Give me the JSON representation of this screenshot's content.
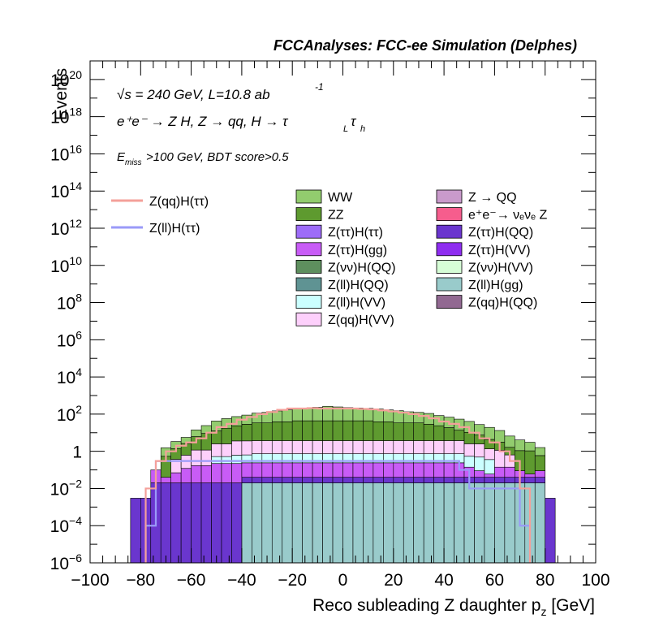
{
  "chart_data": {
    "type": "bar",
    "subtype": "stacked-histogram",
    "header": "FCCAnalyses: FCC-ee Simulation (Delphes)",
    "annotations": {
      "energy": "√s = 240 GeV, L=10.8 ab",
      "energy_sup": "-1",
      "process": "e⁺e⁻ → Z H, Z → qq, H → τ",
      "process_sub_L": "L",
      "process_tau": "τ",
      "process_sub_h": "h",
      "cuts_E": "E",
      "cuts_sub": "miss",
      "cuts_rest": ">100 GeV, BDT score>0.5"
    },
    "xlabel": "Reco subleading Z daughter p",
    "xlabel_sub": "z",
    "xlabel_unit": " [GeV]",
    "ylabel": "Events",
    "xlim": [
      -100,
      100
    ],
    "ylim": [
      1e-06,
      1e+21
    ],
    "yscale": "log",
    "x_ticks": [
      -100,
      -80,
      -60,
      -40,
      -20,
      0,
      20,
      40,
      60,
      80,
      100
    ],
    "x_tick_labels": [
      "−100",
      "−80",
      "−60",
      "−40",
      "−20",
      "0",
      "20",
      "40",
      "60",
      "80",
      "100"
    ],
    "y_ticks": [
      {
        "exp": -6,
        "base": "10",
        "sup": "−6"
      },
      {
        "exp": -4,
        "base": "10",
        "sup": "−4"
      },
      {
        "exp": -2,
        "base": "10",
        "sup": "−2"
      },
      {
        "exp": 0,
        "base": "1",
        "sup": ""
      },
      {
        "exp": 2,
        "base": "10",
        "sup": "2"
      },
      {
        "exp": 4,
        "base": "10",
        "sup": "4"
      },
      {
        "exp": 6,
        "base": "10",
        "sup": "6"
      },
      {
        "exp": 8,
        "base": "10",
        "sup": "8"
      },
      {
        "exp": 10,
        "base": "10",
        "sup": "10"
      },
      {
        "exp": 12,
        "base": "10",
        "sup": "12"
      },
      {
        "exp": 14,
        "base": "10",
        "sup": "14"
      },
      {
        "exp": 16,
        "base": "10",
        "sup": "16"
      },
      {
        "exp": 18,
        "base": "10",
        "sup": "18"
      },
      {
        "exp": 20,
        "base": "10",
        "sup": "20"
      }
    ],
    "bin_edges": [
      -100,
      100
    ],
    "bin_width": 4,
    "legend_signal": [
      {
        "name": "Z(qq)H(ττ)",
        "color": "#f4a09a"
      },
      {
        "name": "Z(ll)H(ττ)",
        "color": "#9a9af8"
      }
    ],
    "legend_bkg_col1": [
      {
        "name": "WW",
        "color": "#92cc6e"
      },
      {
        "name": "ZZ",
        "color": "#5e9a2f"
      },
      {
        "name": "Z(ττ)H(ττ)",
        "color": "#9d6cf8"
      },
      {
        "name": "Z(ττ)H(gg)",
        "color": "#c85cf6"
      },
      {
        "name": "Z(νν)H(QQ)",
        "color": "#5e8f5e"
      },
      {
        "name": "Z(ll)H(QQ)",
        "color": "#5f9393"
      },
      {
        "name": "Z(ll)H(VV)",
        "color": "#cbffff"
      },
      {
        "name": "Z(qq)H(VV)",
        "color": "#fdd0fb"
      }
    ],
    "legend_bkg_col2": [
      {
        "name": "Z → QQ",
        "color": "#c99acb"
      },
      {
        "name": "e⁺e⁻→ νₑνₑ Z",
        "color": "#f65d8d"
      },
      {
        "name": "Z(ττ)H(QQ)",
        "color": "#6a36ce"
      },
      {
        "name": "Z(ττ)H(VV)",
        "color": "#8e2df0"
      },
      {
        "name": "Z(νν)H(VV)",
        "color": "#d6fdd6"
      },
      {
        "name": "Z(ll)H(gg)",
        "color": "#99cbcb"
      },
      {
        "name": "Z(qq)H(QQ)",
        "color": "#926992"
      }
    ],
    "series": [
      {
        "name": "Z(ll)H(gg)",
        "color": "#99cbcb",
        "edge_lo": 3,
        "edge_hi": 43,
        "values": [
          0,
          0,
          0,
          0,
          0,
          0,
          0,
          0,
          0,
          0,
          0,
          0,
          0,
          0,
          0,
          0.02,
          0.02,
          0.02,
          0.02,
          0.02,
          0.02,
          0.02,
          0.02,
          0.02,
          0.02,
          0.02,
          0.02,
          0.02,
          0.02,
          0.02,
          0.02,
          0.02,
          0.02,
          0.02,
          0.02,
          0.02,
          0.02,
          0.02,
          0.02,
          0.02,
          0.02,
          0.02,
          0.02,
          0.02,
          0.02,
          0,
          0,
          0,
          0,
          0
        ]
      },
      {
        "name": "Z(ττ)H(QQ)",
        "color": "#6a36ce",
        "edge_lo": 4,
        "edge_hi": 44,
        "values": [
          0,
          0,
          0,
          0,
          0.003,
          0.003,
          0.02,
          0.02,
          0.02,
          0.02,
          0.02,
          0.02,
          0.02,
          0.02,
          0.02,
          0.02,
          0.02,
          0.02,
          0.02,
          0.02,
          0.02,
          0.02,
          0.02,
          0.02,
          0.02,
          0.02,
          0.02,
          0.02,
          0.02,
          0.02,
          0.02,
          0.02,
          0.02,
          0.02,
          0.02,
          0.02,
          0.02,
          0.02,
          0.02,
          0.02,
          0.02,
          0.02,
          0.02,
          0.02,
          0.02,
          0.003,
          0,
          0,
          0,
          0
        ]
      },
      {
        "name": "Z(ττ)H(gg)",
        "color": "#c85cf6",
        "edge_lo": 6,
        "edge_hi": 44,
        "values": [
          0,
          0,
          0,
          0,
          0,
          0,
          0.08,
          0.02,
          0.05,
          0.1,
          0.15,
          0.15,
          0.2,
          0.2,
          0.2,
          0.2,
          0.2,
          0.2,
          0.2,
          0.2,
          0.2,
          0.2,
          0.2,
          0.2,
          0.2,
          0.2,
          0.2,
          0.2,
          0.2,
          0.2,
          0.2,
          0.2,
          0.2,
          0.2,
          0.2,
          0.2,
          0.2,
          0.1,
          0.05,
          0.02,
          0.1,
          0.1,
          0.05,
          0.02,
          0.05,
          0,
          0,
          0,
          0,
          0
        ]
      },
      {
        "name": "Z(ll)H(VV)",
        "color": "#cbffff",
        "edge_lo": 12,
        "edge_hi": 40,
        "values": [
          0,
          0,
          0,
          0,
          0,
          0,
          0,
          0,
          0,
          0,
          0,
          0,
          0.3,
          0.3,
          0.4,
          0.4,
          0.5,
          0.5,
          0.5,
          0.5,
          0.5,
          0.5,
          0.5,
          0.5,
          0.5,
          0.5,
          0.5,
          0.5,
          0.5,
          0.5,
          0.5,
          0.5,
          0.5,
          0.5,
          0.5,
          0.5,
          0.5,
          0.4,
          0.4,
          0.3,
          0,
          0,
          0,
          0,
          0,
          0,
          0,
          0,
          0,
          0
        ]
      },
      {
        "name": "Z(qq)H(VV)",
        "color": "#fdd0fb",
        "edge_lo": 8,
        "edge_hi": 42,
        "values": [
          0,
          0,
          0,
          0,
          0,
          0,
          0,
          0,
          0.3,
          0.5,
          1,
          1,
          2,
          2,
          3,
          3,
          3,
          3,
          3,
          3,
          3,
          3,
          3,
          3,
          3,
          3,
          3,
          3,
          3,
          3,
          3,
          3,
          3,
          3,
          3,
          3,
          3,
          2,
          2,
          1,
          1,
          0.5,
          0,
          0,
          0,
          0,
          0,
          0,
          0,
          0
        ]
      },
      {
        "name": "ZZ",
        "color": "#5e9a2f",
        "edge_lo": 7,
        "edge_hi": 45,
        "values": [
          0,
          0,
          0,
          0,
          0,
          0,
          0,
          0.5,
          1,
          2,
          5,
          8,
          10,
          15,
          20,
          25,
          30,
          30,
          35,
          35,
          40,
          40,
          40,
          40,
          40,
          40,
          40,
          40,
          35,
          35,
          30,
          30,
          30,
          25,
          20,
          15,
          10,
          8,
          5,
          3,
          2,
          1,
          1,
          1,
          0.5,
          0,
          0,
          0,
          0,
          0
        ]
      },
      {
        "name": "WW",
        "color": "#92cc6e",
        "edge_lo": 7,
        "edge_hi": 45,
        "values": [
          0,
          0,
          0,
          0,
          0,
          0,
          0,
          1,
          2,
          3,
          8,
          15,
          30,
          40,
          50,
          60,
          80,
          90,
          110,
          130,
          150,
          170,
          190,
          220,
          200,
          180,
          170,
          160,
          150,
          130,
          120,
          100,
          90,
          80,
          60,
          50,
          40,
          30,
          20,
          15,
          10,
          5,
          3,
          2,
          1,
          0,
          0,
          0,
          0,
          0
        ]
      }
    ],
    "signal_qq_tautau": [
      {
        "x": -76,
        "y": 0.01
      },
      {
        "x": -72,
        "y": 0.3
      },
      {
        "x": -68,
        "y": 1
      },
      {
        "x": -64,
        "y": 2
      },
      {
        "x": -60,
        "y": 3
      },
      {
        "x": -56,
        "y": 5
      },
      {
        "x": -52,
        "y": 10
      },
      {
        "x": -48,
        "y": 20
      },
      {
        "x": -44,
        "y": 30
      },
      {
        "x": -40,
        "y": 50
      },
      {
        "x": -36,
        "y": 70
      },
      {
        "x": -32,
        "y": 100
      },
      {
        "x": -28,
        "y": 130
      },
      {
        "x": -24,
        "y": 170
      },
      {
        "x": -20,
        "y": 200
      },
      {
        "x": -16,
        "y": 200
      },
      {
        "x": -12,
        "y": 210
      },
      {
        "x": -8,
        "y": 200
      },
      {
        "x": -4,
        "y": 200
      },
      {
        "x": 0,
        "y": 200
      },
      {
        "x": 4,
        "y": 200
      },
      {
        "x": 8,
        "y": 190
      },
      {
        "x": 12,
        "y": 180
      },
      {
        "x": 16,
        "y": 160
      },
      {
        "x": 20,
        "y": 140
      },
      {
        "x": 24,
        "y": 120
      },
      {
        "x": 28,
        "y": 100
      },
      {
        "x": 32,
        "y": 80
      },
      {
        "x": 36,
        "y": 60
      },
      {
        "x": 40,
        "y": 40
      },
      {
        "x": 44,
        "y": 30
      },
      {
        "x": 48,
        "y": 20
      },
      {
        "x": 52,
        "y": 10
      },
      {
        "x": 56,
        "y": 5
      },
      {
        "x": 60,
        "y": 3
      },
      {
        "x": 64,
        "y": 1
      },
      {
        "x": 68,
        "y": 0.3
      },
      {
        "x": 72,
        "y": 0.01
      }
    ],
    "signal_ll_tautau": [
      {
        "x": -76,
        "y": 0.0001
      },
      {
        "x": -72,
        "y": 0.3
      },
      {
        "x": -68,
        "y": 0.3
      },
      {
        "x": -64,
        "y": 0.3
      },
      {
        "x": -60,
        "y": 0.3
      },
      {
        "x": -56,
        "y": 0.3
      },
      {
        "x": -52,
        "y": 0.3
      },
      {
        "x": -48,
        "y": 0.3
      },
      {
        "x": -44,
        "y": 0.3
      },
      {
        "x": -40,
        "y": 0.3
      },
      {
        "x": -36,
        "y": 0.3
      },
      {
        "x": -32,
        "y": 0.3
      },
      {
        "x": -28,
        "y": 0.3
      },
      {
        "x": -24,
        "y": 0.3
      },
      {
        "x": -20,
        "y": 0.3
      },
      {
        "x": -16,
        "y": 0.3
      },
      {
        "x": -12,
        "y": 0.3
      },
      {
        "x": -8,
        "y": 0.3
      },
      {
        "x": -4,
        "y": 0.3
      },
      {
        "x": 0,
        "y": 0.3
      },
      {
        "x": 4,
        "y": 0.3
      },
      {
        "x": 8,
        "y": 0.3
      },
      {
        "x": 12,
        "y": 0.3
      },
      {
        "x": 16,
        "y": 0.3
      },
      {
        "x": 20,
        "y": 0.3
      },
      {
        "x": 24,
        "y": 0.3
      },
      {
        "x": 28,
        "y": 0.3
      },
      {
        "x": 32,
        "y": 0.3
      },
      {
        "x": 36,
        "y": 0.3
      },
      {
        "x": 40,
        "y": 0.3
      },
      {
        "x": 44,
        "y": 0.3
      },
      {
        "x": 48,
        "y": 0.1
      },
      {
        "x": 52,
        "y": 0.01
      },
      {
        "x": 56,
        "y": 0.01
      },
      {
        "x": 60,
        "y": 0.01
      },
      {
        "x": 64,
        "y": 0.01
      },
      {
        "x": 68,
        "y": 0.01
      },
      {
        "x": 72,
        "y": 0.0001
      }
    ]
  }
}
